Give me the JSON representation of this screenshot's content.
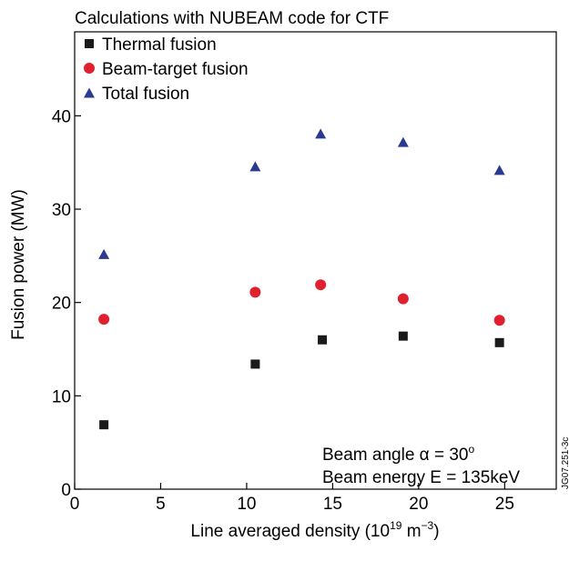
{
  "chart_data": {
    "type": "scatter",
    "title": "Calculations with NUBEAM code for CTF",
    "xlabel": "Line averaged density (10",
    "xlabel_sup": "19",
    "xlabel_unit": " m",
    "xlabel_unit_sup": "−3",
    "xlabel_close": ")",
    "ylabel": "Fusion power (MW)",
    "xlim": [
      0,
      28
    ],
    "ylim": [
      0,
      49
    ],
    "xticks": [
      0,
      5,
      10,
      15,
      20,
      25
    ],
    "xtick_labels": [
      "0",
      "5",
      "10",
      "15",
      "20",
      "25"
    ],
    "yticks": [
      0,
      10,
      20,
      30,
      40
    ],
    "ytick_labels": [
      "0",
      "10",
      "20",
      "30",
      "40"
    ],
    "grid": false,
    "legend_position": "top-left",
    "series": [
      {
        "name": "Thermal fusion",
        "marker": "square",
        "color": "#1a1a1a",
        "x": [
          1.7,
          10.5,
          14.4,
          19.1,
          24.7
        ],
        "y": [
          6.9,
          13.4,
          16.0,
          16.4,
          15.7
        ]
      },
      {
        "name": "Beam-target fusion",
        "marker": "circle",
        "color": "#e0202e",
        "x": [
          1.7,
          10.5,
          14.3,
          19.1,
          24.7
        ],
        "y": [
          18.2,
          21.1,
          21.9,
          20.4,
          18.1
        ]
      },
      {
        "name": "Total fusion",
        "marker": "triangle",
        "color": "#2b3990",
        "x": [
          1.7,
          10.5,
          14.3,
          19.1,
          24.7
        ],
        "y": [
          25.2,
          34.6,
          38.1,
          37.2,
          34.2
        ]
      }
    ],
    "annotations": {
      "angle_prefix": "Beam angle α = 30",
      "angle_sup": "o",
      "energy": "Beam energy E = 135keV"
    },
    "figure_id": "JG07.251-3c"
  }
}
